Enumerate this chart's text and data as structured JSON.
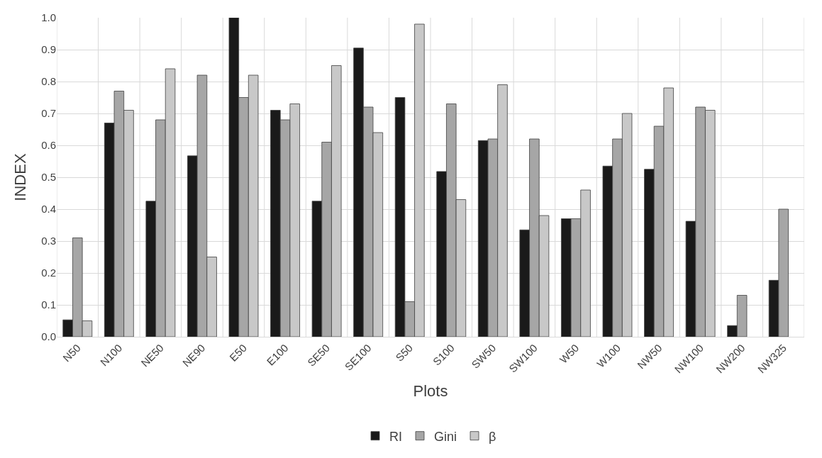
{
  "chart_data": {
    "type": "bar",
    "xlabel": "Plots",
    "ylabel": "INDEX",
    "categories": [
      "N50",
      "N100",
      "NE50",
      "NE90",
      "E50",
      "E100",
      "SE50",
      "SE100",
      "S50",
      "S100",
      "SW50",
      "SW100",
      "W50",
      "W100",
      "NW50",
      "NW100",
      "NW200",
      "NW325"
    ],
    "series": [
      {
        "name": "RI",
        "color": "#1a1a1a",
        "values": [
          0.053,
          0.67,
          0.425,
          0.567,
          1.0,
          0.71,
          0.425,
          0.905,
          0.75,
          0.518,
          0.615,
          0.335,
          0.37,
          0.535,
          0.525,
          0.362,
          0.035,
          0.177
        ]
      },
      {
        "name": "Gini",
        "color": "#a6a6a6",
        "values": [
          0.31,
          0.77,
          0.68,
          0.82,
          0.75,
          0.68,
          0.61,
          0.72,
          0.11,
          0.73,
          0.62,
          0.62,
          0.37,
          0.62,
          0.66,
          0.72,
          0.13,
          0.4
        ]
      },
      {
        "name": "β",
        "color": "#c8c8c8",
        "values": [
          0.05,
          0.71,
          0.84,
          0.25,
          0.82,
          0.73,
          0.85,
          0.64,
          0.98,
          0.43,
          0.79,
          0.38,
          0.46,
          0.7,
          0.78,
          0.71,
          null,
          null
        ]
      }
    ],
    "ylim": [
      0,
      1.0
    ],
    "yticks": [
      {
        "value": 0,
        "label": "0.0"
      },
      {
        "value": 0.1,
        "label": "0.1"
      },
      {
        "value": 0.2,
        "label": "0.2"
      },
      {
        "value": 0.3,
        "label": "0.3"
      },
      {
        "value": 0.4,
        "label": "0.4"
      },
      {
        "value": 0.5,
        "label": "0.5"
      },
      {
        "value": 0.6,
        "label": "0.6"
      },
      {
        "value": 0.7,
        "label": "0.7"
      },
      {
        "value": 0.8,
        "label": "0.8"
      },
      {
        "value": 0.9,
        "label": "0.9"
      },
      {
        "value": 1.0,
        "label": "1.0"
      }
    ],
    "grid": true,
    "legend": "bottom"
  }
}
